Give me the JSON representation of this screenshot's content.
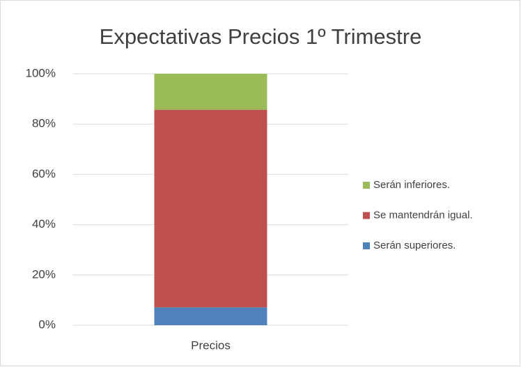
{
  "chart_data": {
    "type": "stacked_bar",
    "title": "Expectativas Precios 1º Trimestre",
    "categories": [
      "Precios"
    ],
    "series": [
      {
        "name": "Serán superiores.",
        "color": "#4f81bd",
        "values": [
          7.1
        ]
      },
      {
        "name": "Se mantendrán igual.",
        "color": "#c0504d",
        "values": [
          78.6
        ]
      },
      {
        "name": "Serán inferiores.",
        "color": "#9bbb59",
        "values": [
          14.3
        ]
      }
    ],
    "ylim": [
      0,
      100
    ],
    "yticks": [
      {
        "value": 0,
        "label": "0%"
      },
      {
        "value": 20,
        "label": "20%"
      },
      {
        "value": 40,
        "label": "40%"
      },
      {
        "value": 60,
        "label": "60%"
      },
      {
        "value": 80,
        "label": "80%"
      },
      {
        "value": 100,
        "label": "100%"
      }
    ],
    "grid": true,
    "legend": "right"
  }
}
